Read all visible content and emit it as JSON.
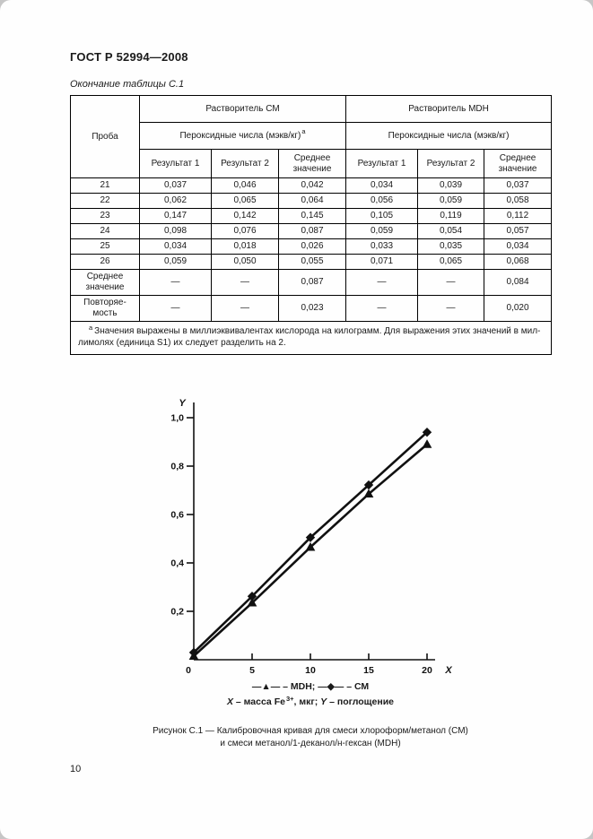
{
  "page": {
    "number": "10"
  },
  "header": {
    "title": "ГОСТ Р 52994—2008"
  },
  "table": {
    "caption": "Окончание таблицы С.1",
    "col_sample": "Проба",
    "group_cm": "Растворитель СМ",
    "group_mdh": "Растворитель MDH",
    "subheader_cm": "Пероксидные числа (мэкв/кг)",
    "subheader_mdh": "Пероксидные числа (мэкв/кг)",
    "footnote_marker": "а",
    "result_cols": [
      "Результат 1",
      "Результат 2",
      "Среднее значение"
    ],
    "rows": [
      {
        "sample": "21",
        "values": [
          "0,037",
          "0,046",
          "0,042",
          "0,034",
          "0,039",
          "0,037"
        ]
      },
      {
        "sample": "22",
        "values": [
          "0,062",
          "0,065",
          "0,064",
          "0,056",
          "0,059",
          "0,058"
        ]
      },
      {
        "sample": "23",
        "values": [
          "0,147",
          "0,142",
          "0,145",
          "0,105",
          "0,119",
          "0,112"
        ]
      },
      {
        "sample": "24",
        "values": [
          "0,098",
          "0,076",
          "0,087",
          "0,059",
          "0,054",
          "0,057"
        ]
      },
      {
        "sample": "25",
        "values": [
          "0,034",
          "0,018",
          "0,026",
          "0,033",
          "0,035",
          "0,034"
        ]
      },
      {
        "sample": "26",
        "values": [
          "0,059",
          "0,050",
          "0,055",
          "0,071",
          "0,065",
          "0,068"
        ]
      }
    ],
    "summary_rows": [
      {
        "label": "Среднее\nзначение",
        "values": [
          "—",
          "—",
          "0,087",
          "—",
          "—",
          "0,084"
        ]
      },
      {
        "label": "Повторяе-\nмость",
        "values": [
          "—",
          "—",
          "0,023",
          "—",
          "—",
          "0,020"
        ]
      }
    ],
    "footnote_lines": [
      "Значения выражены в миллиэквивалентах кислорода на килограмм. Для выражения этих значений в мил-",
      "лимолях (единица S1) их следует разделить на 2."
    ]
  },
  "chart_data": {
    "type": "line",
    "x": [
      0,
      5,
      10,
      15,
      20
    ],
    "series": [
      {
        "name": "MDH",
        "marker": "triangle",
        "values": [
          0.015,
          0.235,
          0.465,
          0.685,
          0.89
        ]
      },
      {
        "name": "СМ",
        "marker": "diamond",
        "values": [
          0.03,
          0.262,
          0.505,
          0.722,
          0.94
        ]
      }
    ],
    "xlabel": "X",
    "ylabel": "Y",
    "xlim": [
      0,
      20
    ],
    "ylim": [
      0,
      1.0
    ],
    "grid": false,
    "legend_position": "below",
    "x_ticks": [
      {
        "v": 0,
        "label": "0"
      },
      {
        "v": 5,
        "label": "5"
      },
      {
        "v": 10,
        "label": "10"
      },
      {
        "v": 15,
        "label": "15"
      },
      {
        "v": 20,
        "label": "20"
      }
    ],
    "y_ticks": [
      {
        "v": 0.2,
        "label": "0,2"
      },
      {
        "v": 0.4,
        "label": "0,4"
      },
      {
        "v": 0.6,
        "label": "0,6"
      },
      {
        "v": 0.8,
        "label": "0,8"
      },
      {
        "v": 1.0,
        "label": "1,0"
      }
    ],
    "legend_text": "—▲— – MDH;  —◆— – СМ",
    "note": {
      "x_var": "X",
      "x_text": " – масса Fe",
      "sup": "3+",
      "mid": ", мкг; ",
      "y_var": "Y",
      "y_text": " – поглощение"
    }
  },
  "figure": {
    "caption_lines": [
      "Рисунок С.1 — Калибровочная кривая для смеси хлороформ/метанол (СМ)",
      "и смеси метанол/1-деканол/н-гексан (MDH)"
    ]
  }
}
